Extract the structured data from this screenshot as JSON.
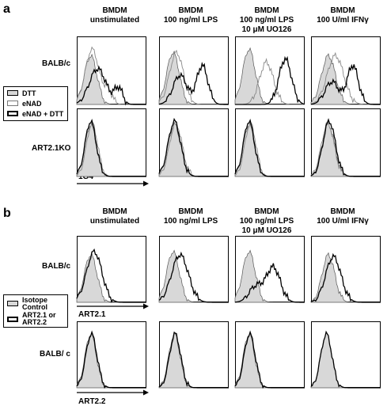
{
  "panel_a": {
    "letter": "a",
    "columns": [
      [
        "BMDM",
        "unstimulated"
      ],
      [
        "BMDM",
        "100 ng/ml LPS"
      ],
      [
        "BMDM",
        "100 ng/ml LPS",
        "10 μM UO126"
      ],
      [
        "BMDM",
        "100 U/ml IFNγ"
      ]
    ],
    "rows": [
      "BALB/c",
      "ART2.1KO"
    ],
    "legend": [
      "DTT",
      "eNAD",
      "eNAD + DTT"
    ],
    "axis_label": "1G4"
  },
  "panel_b": {
    "letter": "b",
    "columns": [
      [
        "BMDM",
        "unstimulated"
      ],
      [
        "BMDM",
        "100 ng/ml LPS"
      ],
      [
        "BMDM",
        "100 ng/ml LPS",
        "10 μM UO126"
      ],
      [
        "BMDM",
        "100 U/ml IFNγ"
      ]
    ],
    "rows": [
      "BALB/c",
      "BALB/ c"
    ],
    "legend": [
      "Isotope Control",
      "ART2.1 or ART2.2"
    ],
    "axis_labels": [
      "ART2.1",
      "ART2.2"
    ]
  },
  "colors": {
    "fill": "#d8d8d8",
    "line": "#000000",
    "light_line": "#888888"
  }
}
